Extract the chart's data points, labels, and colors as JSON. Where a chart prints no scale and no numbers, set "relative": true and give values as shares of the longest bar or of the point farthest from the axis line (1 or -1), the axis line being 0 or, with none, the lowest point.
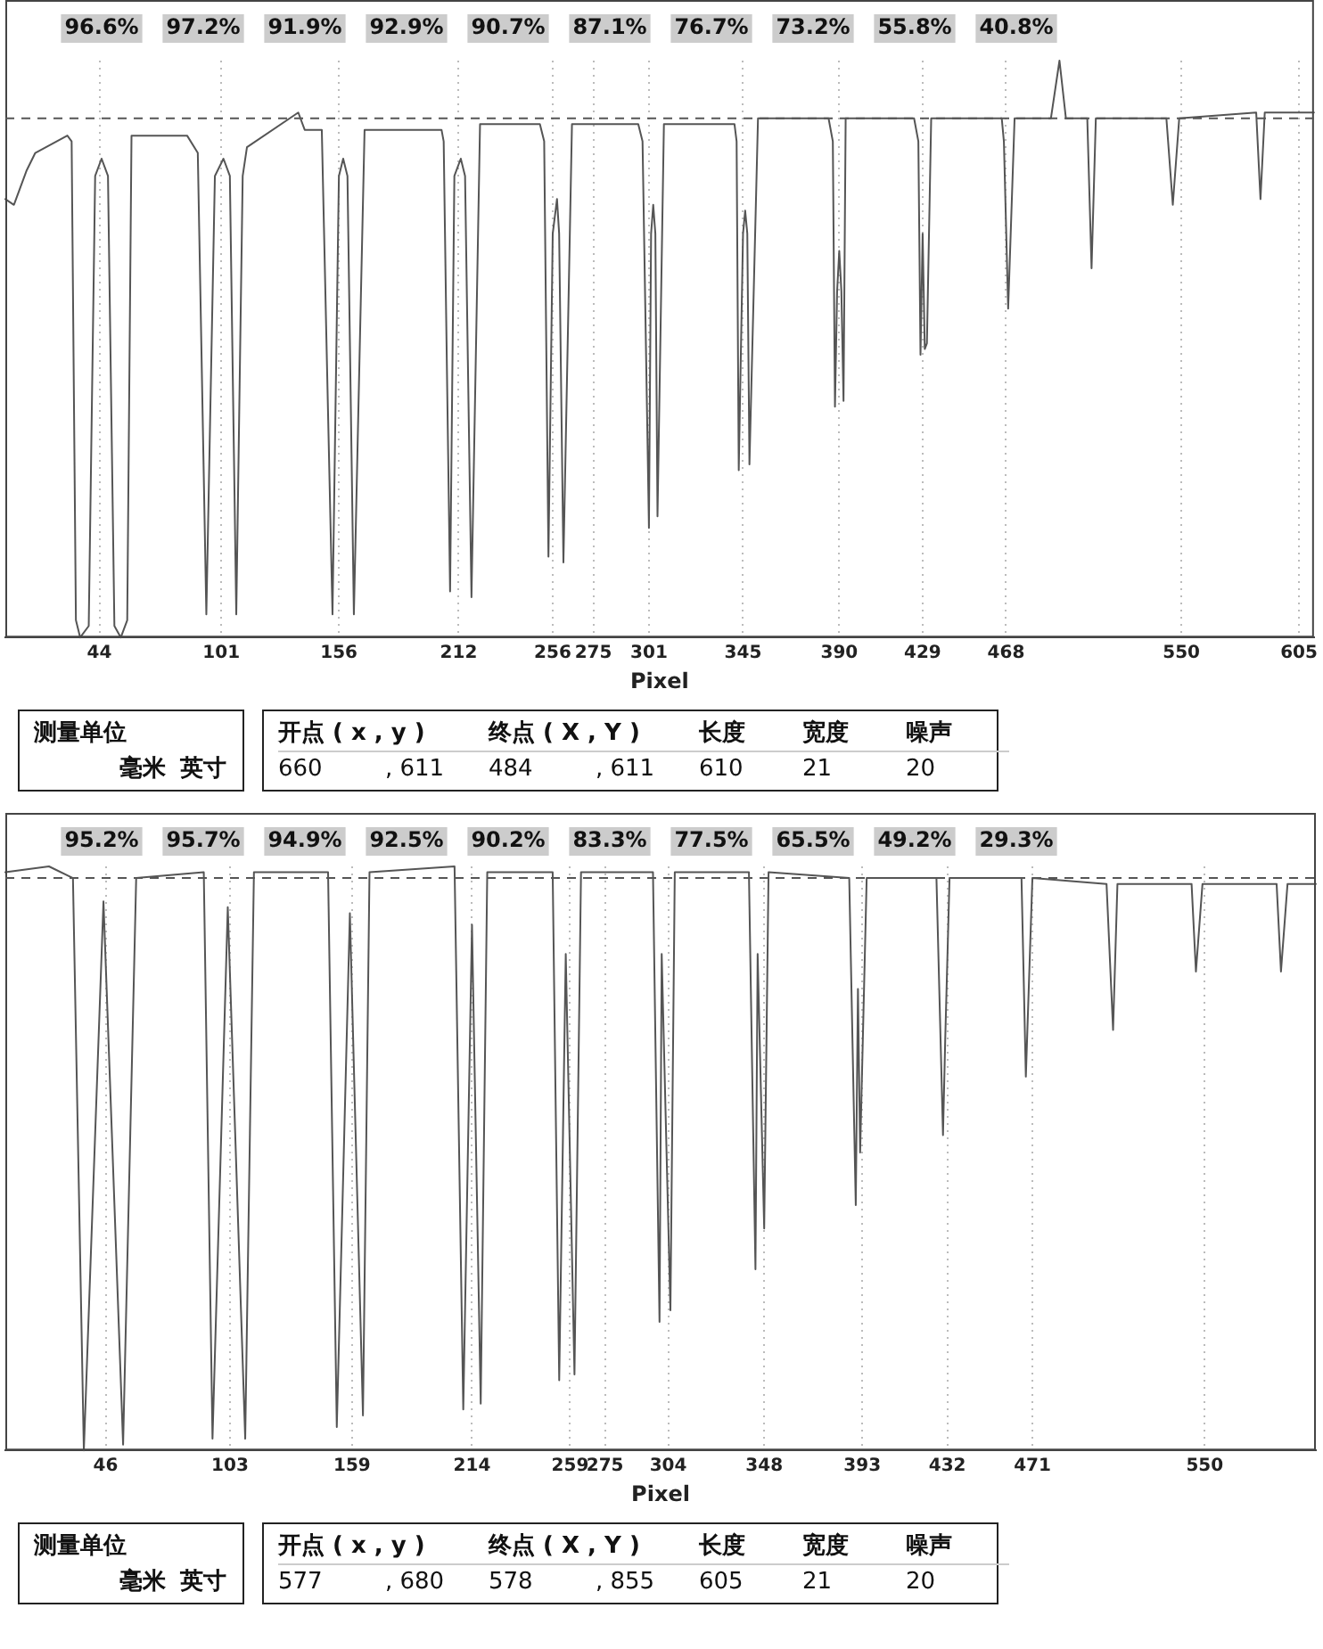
{
  "chart_data": [
    {
      "type": "line",
      "relative": true,
      "xlabel": "Pixel",
      "xlim": [
        0,
        612
      ],
      "xticks": [
        44,
        101,
        156,
        212,
        256,
        275,
        301,
        345,
        390,
        429,
        468,
        550,
        605
      ],
      "grid": "x",
      "marker": "none",
      "legend": false,
      "ref_lines": [
        {
          "axis": "y",
          "value": 0.9,
          "line_style": "dashed"
        }
      ],
      "annotations": [
        "96.6%",
        "97.2%",
        "91.9%",
        "92.9%",
        "90.7%",
        "87.1%",
        "76.7%",
        "73.2%",
        "55.8%",
        "40.8%"
      ],
      "series": [
        {
          "color": "#555555",
          "x": [
            0,
            4,
            10,
            14,
            29,
            31,
            33,
            35,
            39,
            42,
            45,
            48,
            51,
            54,
            57,
            59,
            85,
            90,
            94,
            98,
            102,
            105,
            108,
            111,
            113,
            137,
            140,
            148,
            153,
            156,
            158,
            160,
            163,
            168,
            204,
            205,
            208,
            210,
            213,
            215,
            218,
            222,
            250,
            252,
            254,
            256,
            258,
            259,
            261,
            265,
            296,
            298,
            301,
            302,
            303,
            304,
            305,
            308,
            341,
            342,
            343,
            345,
            346,
            347,
            348,
            352,
            385,
            387,
            388,
            389,
            390,
            391,
            392,
            393,
            425,
            427,
            428,
            429,
            430,
            431,
            433,
            466,
            467,
            469,
            472,
            489,
            493,
            496,
            506,
            508,
            510,
            543,
            546,
            549,
            585,
            587,
            589,
            612
          ],
          "values": [
            0.76,
            0.75,
            0.81,
            0.84,
            0.87,
            0.86,
            0.03,
            0,
            0.02,
            0.8,
            0.83,
            0.8,
            0.02,
            0,
            0.03,
            0.87,
            0.87,
            0.84,
            0.04,
            0.8,
            0.83,
            0.8,
            0.04,
            0.8,
            0.85,
            0.91,
            0.88,
            0.88,
            0.04,
            0.8,
            0.83,
            0.8,
            0.04,
            0.88,
            0.88,
            0.86,
            0.08,
            0.8,
            0.83,
            0.8,
            0.07,
            0.89,
            0.89,
            0.86,
            0.14,
            0.7,
            0.76,
            0.7,
            0.13,
            0.89,
            0.89,
            0.86,
            0.19,
            0.7,
            0.75,
            0.7,
            0.21,
            0.89,
            0.89,
            0.86,
            0.29,
            0.7,
            0.74,
            0.7,
            0.3,
            0.9,
            0.9,
            0.86,
            0.4,
            0.6,
            0.67,
            0.6,
            0.41,
            0.9,
            0.9,
            0.86,
            0.49,
            0.7,
            0.5,
            0.51,
            0.9,
            0.9,
            0.86,
            0.57,
            0.9,
            0.9,
            1,
            0.9,
            0.9,
            0.64,
            0.9,
            0.9,
            0.75,
            0.9,
            0.91,
            0.76,
            0.91,
            0.91
          ]
        }
      ]
    },
    {
      "type": "other",
      "annotations": [
        "测量单位",
        "毫米",
        "英寸",
        "开点 ( x , y )",
        "终点 ( X , Y )",
        "长度",
        "宽度",
        "噪声",
        "660",
        ", 611",
        "484",
        ", 611",
        "610",
        "21",
        "20"
      ]
    },
    {
      "type": "line",
      "relative": true,
      "xlabel": "Pixel",
      "xlim": [
        0,
        601
      ],
      "xticks": [
        46,
        103,
        159,
        214,
        259,
        275,
        304,
        348,
        393,
        432,
        471,
        550
      ],
      "grid": "x",
      "marker": "none",
      "legend": false,
      "ref_lines": [
        {
          "axis": "y",
          "value": 0.98,
          "line_style": "dashed"
        }
      ],
      "annotations": [
        "95.2%",
        "95.7%",
        "94.9%",
        "92.5%",
        "90.2%",
        "83.3%",
        "77.5%",
        "65.5%",
        "49.2%",
        "29.3%"
      ],
      "series": [
        {
          "color": "#555555",
          "x": [
            0,
            20,
            31,
            36,
            45,
            54,
            60,
            91,
            95,
            102,
            110,
            114,
            148,
            152,
            158,
            164,
            167,
            206,
            210,
            214,
            218,
            221,
            251,
            254,
            257,
            261,
            264,
            297,
            300,
            301,
            305,
            307,
            341,
            344,
            345,
            348,
            350,
            387,
            390,
            391,
            392,
            395,
            427,
            430,
            431,
            433,
            466,
            468,
            471,
            505,
            508,
            510,
            544,
            546,
            549,
            583,
            585,
            588,
            601
          ],
          "values": [
            0.99,
            1,
            0.98,
            0,
            0.94,
            0.01,
            0.98,
            0.99,
            0.02,
            0.93,
            0.02,
            0.99,
            0.99,
            0.04,
            0.92,
            0.06,
            0.99,
            1,
            0.07,
            0.9,
            0.08,
            0.99,
            0.99,
            0.12,
            0.85,
            0.13,
            0.99,
            0.99,
            0.22,
            0.85,
            0.24,
            0.99,
            0.99,
            0.31,
            0.85,
            0.38,
            0.99,
            0.98,
            0.42,
            0.79,
            0.51,
            0.98,
            0.98,
            0.54,
            0.7,
            0.98,
            0.98,
            0.64,
            0.98,
            0.97,
            0.72,
            0.97,
            0.97,
            0.82,
            0.97,
            0.97,
            0.82,
            0.97,
            0.97
          ]
        }
      ]
    },
    {
      "type": "other",
      "annotations": [
        "测量单位",
        "毫米",
        "英寸",
        "开点 ( x , y )",
        "终点 ( X , Y )",
        "长度",
        "宽度",
        "噪声",
        "577",
        ", 680",
        "578",
        ", 855",
        "605",
        "21",
        "20"
      ]
    }
  ]
}
